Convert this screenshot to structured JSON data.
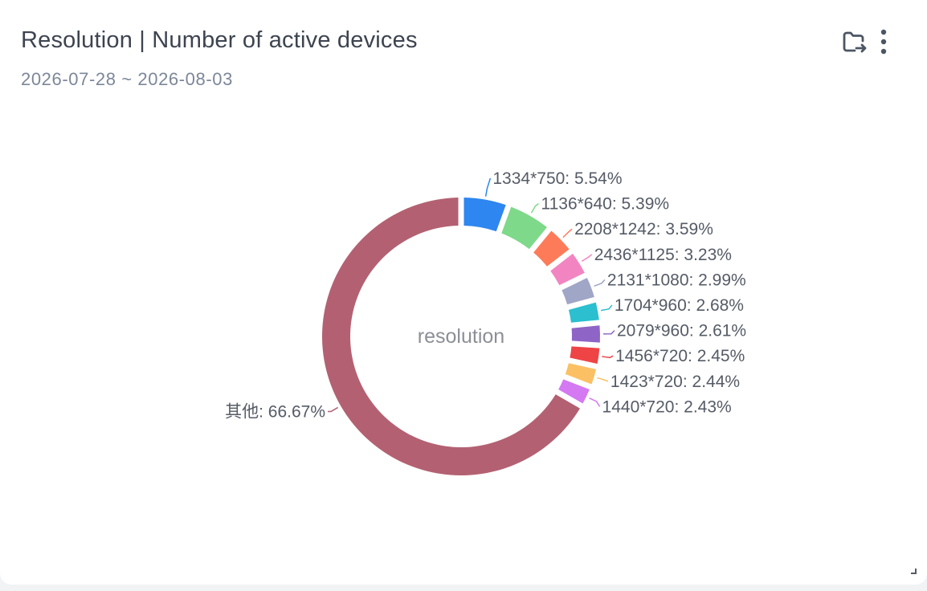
{
  "header": {
    "title": "Resolution | Number of active devices",
    "date_range": "2026-07-28 ~ 2026-08-03"
  },
  "toolbar": {
    "export_icon": "folder-export-icon",
    "more_icon": "more-vertical-icon",
    "icon_color": "#4b5563"
  },
  "chart_data": {
    "type": "pie",
    "variant": "donut",
    "title": "",
    "center_label": "resolution",
    "label_format": "{name}: {percent}",
    "slices": [
      {
        "name": "1334*750",
        "percent": "5.54%",
        "value": 5.54,
        "color": "#2e86f0"
      },
      {
        "name": "1136*640",
        "percent": "5.39%",
        "value": 5.39,
        "color": "#7ed98a"
      },
      {
        "name": "2208*1242",
        "percent": "3.59%",
        "value": 3.59,
        "color": "#fe7b5a"
      },
      {
        "name": "2436*1125",
        "percent": "3.23%",
        "value": 3.23,
        "color": "#f285c1"
      },
      {
        "name": "2131*1080",
        "percent": "2.99%",
        "value": 2.99,
        "color": "#a0a6c6"
      },
      {
        "name": "1704*960",
        "percent": "2.68%",
        "value": 2.68,
        "color": "#2bbfcf"
      },
      {
        "name": "2079*960",
        "percent": "2.61%",
        "value": 2.61,
        "color": "#8e65c6"
      },
      {
        "name": "1456*720",
        "percent": "2.45%",
        "value": 2.45,
        "color": "#ee4446"
      },
      {
        "name": "1423*720",
        "percent": "2.44%",
        "value": 2.44,
        "color": "#fbc063"
      },
      {
        "name": "1440*720",
        "percent": "2.43%",
        "value": 2.43,
        "color": "#d479f2"
      },
      {
        "name": "其他",
        "percent": "66.67%",
        "value": 66.67,
        "color": "#b36172"
      }
    ],
    "legend": "none"
  }
}
